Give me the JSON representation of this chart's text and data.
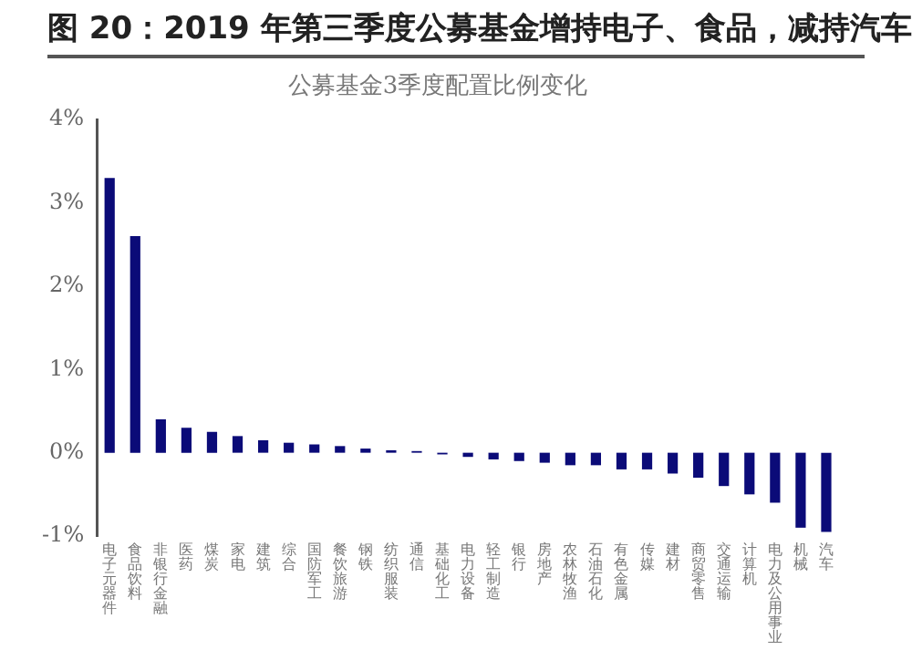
{
  "chart_data": {
    "type": "bar",
    "title": "图 20：2019 年第三季度公募基金增持电子、食品，减持汽车",
    "subtitle": "公募基金3季度配置比例变化",
    "categories": [
      "电子元器件",
      "食品饮料",
      "非银行金融",
      "医药",
      "煤炭",
      "家电",
      "建筑",
      "综合",
      "国防军工",
      "餐饮旅游",
      "钢铁",
      "纺织服装",
      "通信",
      "基础化工",
      "电力设备",
      "轻工制造",
      "银行",
      "房地产",
      "农林牧渔",
      "石油石化",
      "有色金属",
      "传媒",
      "建材",
      "商贸零售",
      "交通运输",
      "计算机",
      "电力及公用事业",
      "机械",
      "汽车"
    ],
    "values": [
      3.3,
      2.6,
      0.4,
      0.3,
      0.25,
      0.2,
      0.15,
      0.12,
      0.1,
      0.08,
      0.05,
      0.03,
      0.02,
      -0.02,
      -0.05,
      -0.08,
      -0.1,
      -0.12,
      -0.15,
      -0.15,
      -0.2,
      -0.2,
      -0.25,
      -0.3,
      -0.4,
      -0.5,
      -0.6,
      -0.9,
      -0.95
    ],
    "color": "#0b0b78",
    "ylim": [
      -1,
      4
    ],
    "yticks": [
      {
        "value": -1,
        "label": "-1%"
      },
      {
        "value": 0,
        "label": "0%"
      },
      {
        "value": 1,
        "label": "1%"
      },
      {
        "value": 2,
        "label": "2%"
      },
      {
        "value": 3,
        "label": "3%"
      },
      {
        "value": 4,
        "label": "4%"
      }
    ],
    "grid": false,
    "legend": false
  }
}
